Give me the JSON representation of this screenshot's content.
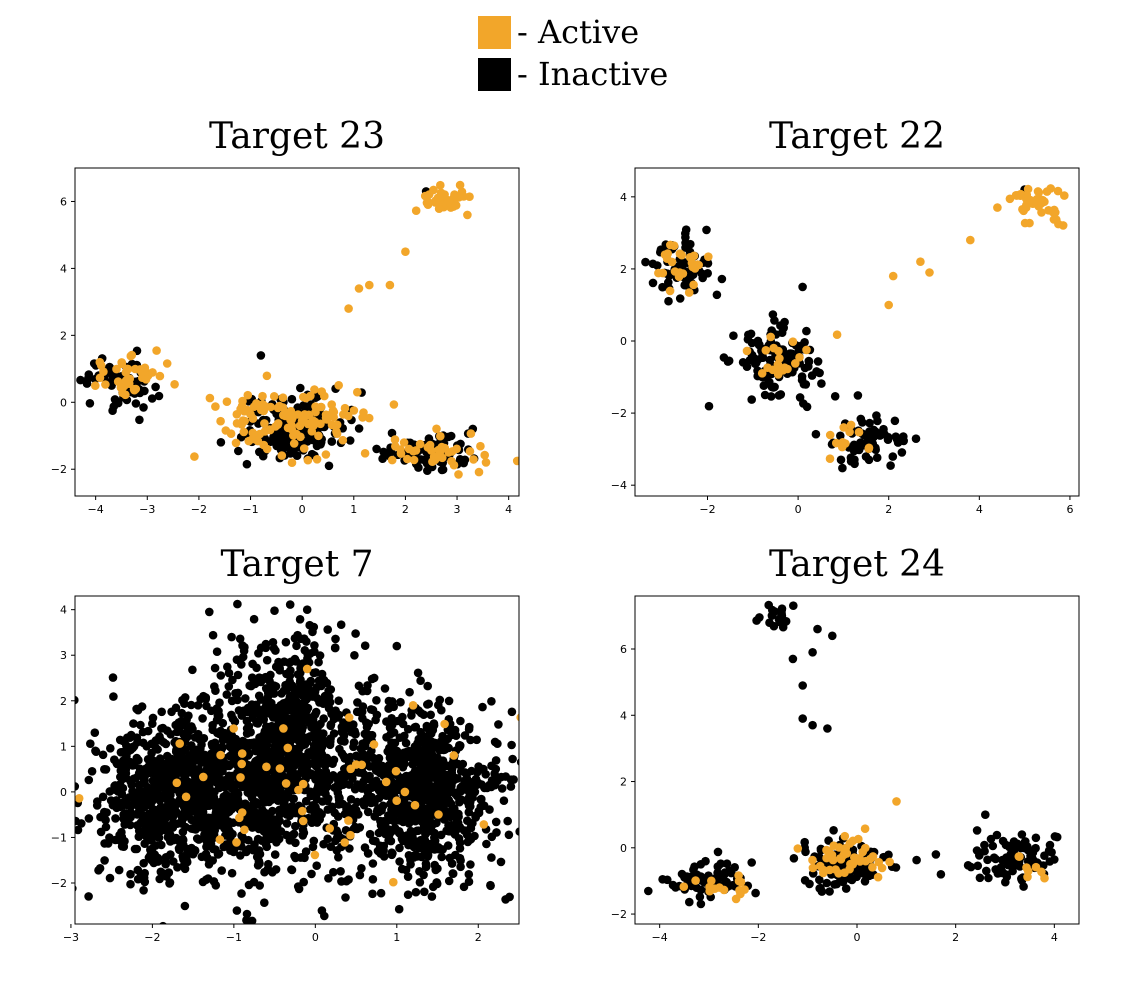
{
  "legend": {
    "items": [
      {
        "label": "- Active",
        "color": "#f2a62a"
      },
      {
        "label": "- Inactive",
        "color": "#000000"
      }
    ]
  },
  "chart_data": [
    {
      "type": "scatter",
      "title": "Target 23",
      "xlim": [
        -4.4,
        4.2
      ],
      "ylim": [
        -2.8,
        7.0
      ],
      "xticks": [
        -4,
        -3,
        -2,
        -1,
        0,
        1,
        2,
        3,
        4
      ],
      "yticks": [
        -2,
        0,
        2,
        4,
        6
      ],
      "series": [
        {
          "color": "#000000",
          "clusters": [
            {
              "cx": -3.5,
              "cy": 0.6,
              "sx": 0.35,
              "sy": 0.45,
              "n": 60
            },
            {
              "cx": -0.2,
              "cy": -0.8,
              "sx": 0.5,
              "sy": 0.45,
              "n": 180
            },
            {
              "cx": 2.5,
              "cy": -1.5,
              "sx": 0.4,
              "sy": 0.3,
              "n": 80
            }
          ],
          "points": [
            [
              -0.8,
              1.4
            ],
            [
              2.4,
              6.3
            ]
          ]
        },
        {
          "color": "#f2a62a",
          "clusters": [
            {
              "cx": -3.3,
              "cy": 0.8,
              "sx": 0.5,
              "sy": 0.35,
              "n": 40
            },
            {
              "cx": -0.3,
              "cy": -0.5,
              "sx": 0.7,
              "sy": 0.5,
              "n": 120
            },
            {
              "cx": 2.7,
              "cy": -1.5,
              "sx": 0.5,
              "sy": 0.35,
              "n": 40
            },
            {
              "cx": 2.8,
              "cy": 6.0,
              "sx": 0.3,
              "sy": 0.25,
              "n": 35
            }
          ],
          "points": [
            [
              0.9,
              2.8
            ],
            [
              1.1,
              3.4
            ],
            [
              1.3,
              3.5
            ],
            [
              1.7,
              3.5
            ],
            [
              2.0,
              4.5
            ],
            [
              3.2,
              5.6
            ]
          ]
        }
      ]
    },
    {
      "type": "scatter",
      "title": "Target 22",
      "xlim": [
        -3.6,
        6.2
      ],
      "ylim": [
        -4.3,
        4.8
      ],
      "xticks": [
        -2,
        0,
        2,
        4,
        6
      ],
      "yticks": [
        -4,
        -2,
        0,
        2,
        4
      ],
      "series": [
        {
          "color": "#000000",
          "clusters": [
            {
              "cx": -2.6,
              "cy": 2.0,
              "sx": 0.35,
              "sy": 0.45,
              "n": 70
            },
            {
              "cx": -0.5,
              "cy": -0.6,
              "sx": 0.45,
              "sy": 0.45,
              "n": 130
            },
            {
              "cx": 1.5,
              "cy": -2.8,
              "sx": 0.4,
              "sy": 0.35,
              "n": 70
            }
          ],
          "points": [
            [
              0.1,
              1.5
            ],
            [
              5.0,
              4.2
            ]
          ]
        },
        {
          "color": "#f2a62a",
          "clusters": [
            {
              "cx": -2.5,
              "cy": 2.1,
              "sx": 0.35,
              "sy": 0.35,
              "n": 25
            },
            {
              "cx": -0.5,
              "cy": -0.5,
              "sx": 0.4,
              "sy": 0.4,
              "n": 20
            },
            {
              "cx": 1.1,
              "cy": -2.8,
              "sx": 0.3,
              "sy": 0.25,
              "n": 12
            },
            {
              "cx": 5.3,
              "cy": 3.9,
              "sx": 0.35,
              "sy": 0.25,
              "n": 40
            }
          ],
          "points": [
            [
              2.0,
              1.0
            ],
            [
              2.1,
              1.8
            ],
            [
              2.7,
              2.2
            ],
            [
              2.9,
              1.9
            ],
            [
              3.8,
              2.8
            ],
            [
              4.4,
              3.7
            ]
          ]
        }
      ]
    },
    {
      "type": "scatter",
      "title": "Target 7",
      "xlim": [
        -2.95,
        2.5
      ],
      "ylim": [
        -2.9,
        4.3
      ],
      "xticks": [
        -3,
        -2,
        -1,
        0,
        1,
        2
      ],
      "yticks": [
        -2,
        -1,
        0,
        1,
        2,
        3,
        4
      ],
      "series": [
        {
          "color": "#000000",
          "clusters": [
            {
              "cx": -1.6,
              "cy": 0.0,
              "sx": 0.55,
              "sy": 0.9,
              "n": 900
            },
            {
              "cx": -0.3,
              "cy": 0.8,
              "sx": 0.45,
              "sy": 1.2,
              "n": 900
            },
            {
              "cx": 1.3,
              "cy": 0.0,
              "sx": 0.45,
              "sy": 0.9,
              "n": 800
            }
          ],
          "points": [
            [
              -0.1,
              4.0
            ],
            [
              1.0,
              3.2
            ],
            [
              2.2,
              0.4
            ]
          ]
        },
        {
          "color": "#f2a62a",
          "clusters": [
            {
              "cx": -0.2,
              "cy": 0.2,
              "sx": 1.2,
              "sy": 0.9,
              "n": 40
            }
          ],
          "points": [
            [
              -0.6,
              0.55
            ],
            [
              -0.1,
              2.7
            ],
            [
              1.2,
              1.9
            ],
            [
              1.7,
              0.8
            ],
            [
              -1.7,
              0.2
            ],
            [
              0.5,
              0.6
            ],
            [
              1.1,
              0.0
            ]
          ]
        }
      ]
    },
    {
      "type": "scatter",
      "title": "Target 24",
      "xlim": [
        -4.5,
        4.5
      ],
      "ylim": [
        -2.3,
        7.6
      ],
      "xticks": [
        -4,
        -2,
        0,
        2,
        4
      ],
      "yticks": [
        -2,
        0,
        2,
        4,
        6
      ],
      "series": [
        {
          "color": "#000000",
          "clusters": [
            {
              "cx": -3.0,
              "cy": -1.0,
              "sx": 0.45,
              "sy": 0.3,
              "n": 70
            },
            {
              "cx": -0.3,
              "cy": -0.5,
              "sx": 0.45,
              "sy": 0.35,
              "n": 110
            },
            {
              "cx": 3.2,
              "cy": -0.3,
              "sx": 0.5,
              "sy": 0.4,
              "n": 90
            },
            {
              "cx": -1.6,
              "cy": 6.9,
              "sx": 0.25,
              "sy": 0.2,
              "n": 20
            }
          ],
          "points": [
            [
              -0.8,
              6.6
            ],
            [
              -0.9,
              5.9
            ],
            [
              -1.3,
              5.7
            ],
            [
              -1.1,
              4.9
            ],
            [
              -1.1,
              3.9
            ],
            [
              -0.9,
              3.7
            ],
            [
              -0.6,
              3.6
            ],
            [
              -0.5,
              6.4
            ],
            [
              1.6,
              -0.2
            ],
            [
              1.7,
              -0.8
            ],
            [
              2.6,
              1.0
            ]
          ]
        },
        {
          "color": "#f2a62a",
          "clusters": [
            {
              "cx": -2.7,
              "cy": -1.2,
              "sx": 0.35,
              "sy": 0.25,
              "n": 15
            },
            {
              "cx": -0.3,
              "cy": -0.3,
              "sx": 0.4,
              "sy": 0.35,
              "n": 45
            },
            {
              "cx": 3.4,
              "cy": -0.6,
              "sx": 0.3,
              "sy": 0.2,
              "n": 8
            }
          ],
          "points": [
            [
              0.8,
              1.4
            ]
          ]
        }
      ]
    }
  ]
}
